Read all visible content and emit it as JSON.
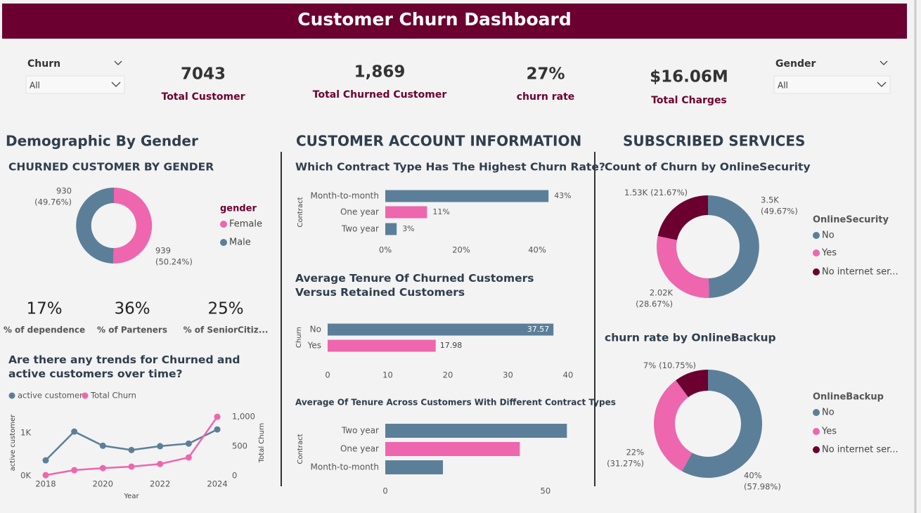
{
  "header": {
    "title": "Customer Churn Dashboard"
  },
  "slicers": [
    {
      "label": "Churn",
      "value": "All"
    },
    {
      "label": "Gender",
      "value": "All"
    }
  ],
  "kpis": [
    {
      "value": "7043",
      "label": "Total Customer"
    },
    {
      "value": "1,869",
      "label": "Total Churned Customer"
    },
    {
      "value": "27%",
      "label": "churn rate"
    },
    {
      "value": "$16.06M",
      "label": "Total Charges"
    }
  ],
  "sections": [
    "Demographic By Gender",
    "CUSTOMER ACCOUNT INFORMATION",
    "SUBSCRIBED SERVICES"
  ],
  "demographic_kpis": [
    {
      "value": "17%",
      "label": "% of dependence"
    },
    {
      "value": "36%",
      "label": "% of Parteners"
    },
    {
      "value": "25%",
      "label": "% of SeniorCitiz..."
    }
  ],
  "chart_data": [
    {
      "type": "donut",
      "title": "CHURNED CUSTOMER BY GENDER",
      "legend_title": "gender",
      "categories": [
        "Female",
        "Male"
      ],
      "values": [
        939,
        930
      ],
      "value_labels": [
        "939",
        "930"
      ],
      "share_labels": [
        "(50.24%)",
        "(49.76%)"
      ],
      "colors": [
        "#ee66ad",
        "#5b7f99"
      ]
    },
    {
      "type": "hbar",
      "title": "Which Contract Type Has The Highest Churn Rate?",
      "y_label": "Contract",
      "categories": [
        "Month-to-month",
        "One year",
        "Two year"
      ],
      "values": [
        43,
        11,
        3
      ],
      "value_labels": [
        "43%",
        "11%",
        "3%"
      ],
      "colors": [
        "#5b7f99",
        "#ee66ad",
        "#5b7f99"
      ],
      "xlim": [
        0,
        45
      ],
      "xticks": [
        {
          "value": 0,
          "label": "0%"
        },
        {
          "value": 20,
          "label": "20%"
        },
        {
          "value": 40,
          "label": "40%"
        }
      ]
    },
    {
      "type": "hbar",
      "title": "Average Tenure Of Churned Customers Versus Retained Customers",
      "y_label": "Churn",
      "categories": [
        "No",
        "Yes"
      ],
      "values": [
        37.57,
        17.98
      ],
      "show_values": true,
      "colors": [
        "#5b7f99",
        "#ee66ad"
      ],
      "xlim": [
        0,
        40
      ],
      "xticks": [
        0,
        10,
        20,
        30,
        40
      ]
    },
    {
      "type": "hbar",
      "title": "Average Of Tenure Across Customers With Different Contract Types",
      "y_label": "Contract",
      "categories": [
        "Two year",
        "One year",
        "Month-to-month"
      ],
      "values": [
        56.7,
        42.0,
        18.0
      ],
      "colors": [
        "#5b7f99",
        "#ee66ad",
        "#5b7f99"
      ],
      "xlim": [
        0,
        57.5
      ],
      "xticks": [
        0,
        50
      ]
    },
    {
      "type": "line",
      "title": "Are there any trends for Churned and active customers over time?",
      "x": [
        2018,
        2019,
        2020,
        2021,
        2022,
        2023,
        2024
      ],
      "xlim": [
        2017.6,
        2024.4
      ],
      "xticks": [
        2018,
        2020,
        2022,
        2024
      ],
      "x_label": "Year",
      "y_label": "active customer",
      "y2_label": "Total Churn",
      "ylim": [
        0,
        1540
      ],
      "yticks": [
        {
          "value": 0,
          "label": "0K"
        },
        {
          "value": 1000,
          "label": "1K"
        }
      ],
      "y2lim": [
        0,
        1120
      ],
      "y2ticks": [
        0,
        500,
        {
          "value": 1000,
          "label": "1,000"
        }
      ],
      "series": [
        {
          "name": "active customer",
          "color": "#5b7f99",
          "values": [
            360,
            1030,
            700,
            600,
            690,
            750,
            1080
          ]
        },
        {
          "name": "Total Churn",
          "color": "#ee66ad",
          "axis": "y2",
          "values": [
            10,
            95,
            130,
            155,
            200,
            310,
            1000
          ]
        }
      ]
    },
    {
      "type": "donut",
      "title": "Count of Churn by OnlineSecurity",
      "legend_title": "OnlineSecurity",
      "categories": [
        "No",
        "Yes",
        "No internet ser..."
      ],
      "values": [
        3498,
        2019,
        1526
      ],
      "value_labels": [
        "3.5K",
        "2.02K",
        "1.53K"
      ],
      "share_labels": [
        "(49.67%)",
        "(28.67%)",
        "(21.67%)"
      ],
      "colors": [
        "#5b7f99",
        "#ee66ad",
        "#6b0030"
      ]
    },
    {
      "type": "donut",
      "title": "churn rate by OnlineBackup",
      "legend_title": "OnlineBackup",
      "categories": [
        "No",
        "Yes",
        "No internet ser..."
      ],
      "values": [
        40,
        22,
        7
      ],
      "value_labels": [
        "40%",
        "22%",
        "7%"
      ],
      "share_labels": [
        "(57.98%)",
        "(31.27%)",
        "(10.75%)"
      ],
      "colors": [
        "#5b7f99",
        "#ee66ad",
        "#6b0030"
      ]
    }
  ]
}
